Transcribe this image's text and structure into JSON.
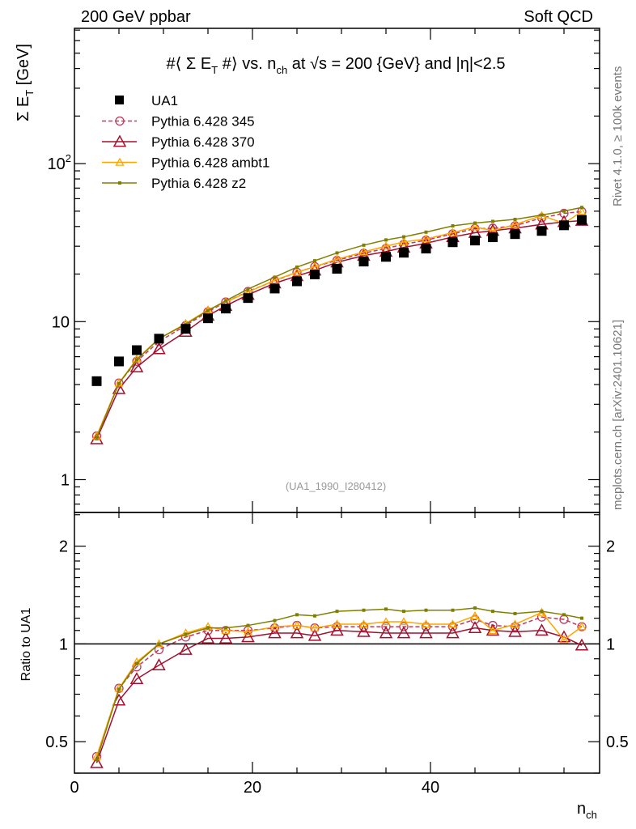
{
  "header": {
    "left": "200 GeV ppbar",
    "right": "Soft QCD"
  },
  "side": {
    "rivet": "Rivet 4.1.0, ≥ 100k events",
    "mcplots": "mcplots.cern.ch [arXiv:2401.10621]"
  },
  "chart_data": {
    "type": "line",
    "title_parts": [
      "#⟨ Σ E",
      "T",
      " #⟩ vs. n",
      "ch",
      " at √s = 200 {GeV} and |η|<2.5"
    ],
    "ylabel_parts": [
      "Σ E",
      "T",
      " [GeV]"
    ],
    "xlabel_parts": [
      "n",
      "ch"
    ],
    "ratio_ylabel": "Ratio to UA1",
    "analysis_id": "(UA1_1990_I280412)",
    "xlim": [
      0,
      59
    ],
    "ylim": [
      0.62,
      718
    ],
    "yscale": "log",
    "ratio_ylim": [
      0.4,
      2.54
    ],
    "ratio_yscale": "log",
    "x_ticks": [
      {
        "v": 0,
        "label": "0"
      },
      {
        "v": 20,
        "label": "20"
      },
      {
        "v": 40,
        "label": "40"
      }
    ],
    "y_ticks": [
      {
        "v": 1,
        "label": "1"
      },
      {
        "v": 10,
        "label": "10"
      },
      {
        "v": 100,
        "label": "10",
        "exp": "2"
      }
    ],
    "ratio_ticks": [
      {
        "v": 0.5,
        "label": "0.5"
      },
      {
        "v": 1,
        "label": "1"
      },
      {
        "v": 2,
        "label": "2"
      }
    ],
    "legend_position": "top-left",
    "x": [
      2.5,
      5,
      7,
      9.5,
      12.5,
      15,
      17,
      19.5,
      22.5,
      25,
      27,
      29.5,
      32.5,
      35,
      37,
      39.5,
      42.5,
      45,
      47,
      49.5,
      52.5,
      55,
      57
    ],
    "data": {
      "name": "UA1",
      "color": "#000000",
      "values": [
        4.2,
        5.6,
        6.6,
        7.8,
        9.0,
        10.5,
        12.1,
        14.1,
        16.2,
        18.0,
        19.9,
        21.6,
        24.0,
        25.7,
        27.3,
        29.0,
        31.8,
        32.6,
        34.2,
        35.8,
        37.5,
        40.7,
        44.0
      ]
    },
    "series": [
      {
        "name": "Pythia 6.428 345",
        "color": "#c0395e",
        "marker": "circle",
        "dashed": true,
        "ratio": [
          0.45,
          0.73,
          0.85,
          0.96,
          1.05,
          1.1,
          1.1,
          1.1,
          1.12,
          1.14,
          1.12,
          1.13,
          1.13,
          1.13,
          1.13,
          1.13,
          1.13,
          1.19,
          1.14,
          1.13,
          1.21,
          1.19,
          1.13
        ]
      },
      {
        "name": "Pythia 6.428 370",
        "color": "#a3102e",
        "marker": "triangle-large",
        "dashed": false,
        "ratio": [
          0.43,
          0.67,
          0.78,
          0.86,
          0.96,
          1.04,
          1.04,
          1.05,
          1.08,
          1.08,
          1.06,
          1.1,
          1.09,
          1.08,
          1.08,
          1.08,
          1.08,
          1.12,
          1.1,
          1.09,
          1.1,
          1.05,
          0.99
        ]
      },
      {
        "name": "Pythia 6.428 ambt1",
        "color": "#ffa500",
        "marker": "triangle-small",
        "dashed": false,
        "ratio": [
          0.45,
          0.73,
          0.88,
          1.0,
          1.08,
          1.13,
          1.1,
          1.09,
          1.13,
          1.14,
          1.12,
          1.15,
          1.15,
          1.17,
          1.17,
          1.15,
          1.15,
          1.22,
          1.1,
          1.15,
          1.25,
          1.03,
          1.13
        ]
      },
      {
        "name": "Pythia 6.428 z2",
        "color": "#808000",
        "marker": "dot",
        "dashed": false,
        "ratio": [
          0.44,
          0.725,
          0.87,
          1.0,
          1.07,
          1.12,
          1.12,
          1.14,
          1.18,
          1.23,
          1.22,
          1.26,
          1.27,
          1.28,
          1.26,
          1.27,
          1.27,
          1.29,
          1.26,
          1.24,
          1.26,
          1.23,
          1.2
        ]
      }
    ]
  }
}
